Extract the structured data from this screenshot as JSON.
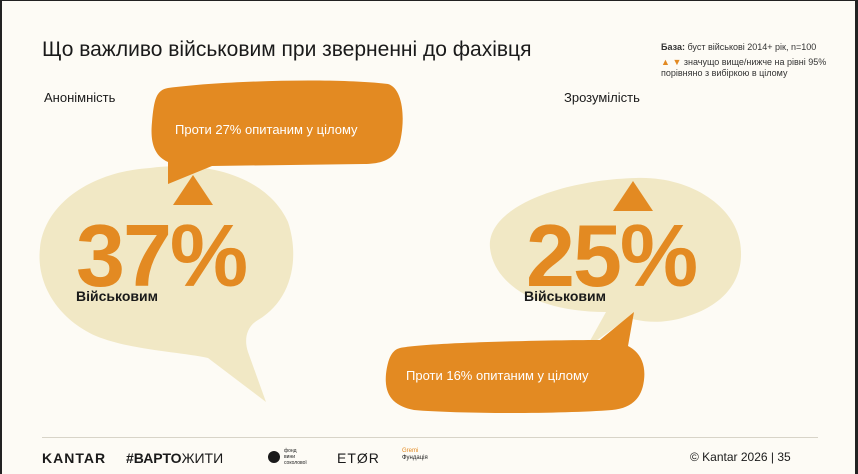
{
  "title": "Що важливо військовим при зверненні до фахівця",
  "notes": {
    "base_label": "База:",
    "base_text": "буст військові 2014+ рік, n=100",
    "legend_up": "▲",
    "legend_down": "▼",
    "legend_text": "значущо вище/нижче на рівні 95% порівняно з вибіркою в цілому"
  },
  "panels": [
    {
      "label": "Анонімність",
      "value": "37%",
      "sublabel": "Військовим",
      "comparison": "Проти 27% опитаним у цілому",
      "significance": "up"
    },
    {
      "label": "Зрозумілість",
      "value": "25%",
      "sublabel": "Військовим",
      "comparison": "Проти 16% опитаним у цілому",
      "significance": "up"
    }
  ],
  "colors": {
    "accent": "#e38a22",
    "bubble": "#f1e8c5",
    "text": "#1a1a1a"
  },
  "footer": {
    "kantar": "KANTAR",
    "varto_bold": "#ВАРТО",
    "varto_rest": "ЖИТИ",
    "fund_lines": [
      "фонд",
      "вини",
      "соколової"
    ],
    "etor": "ETØR",
    "gremi_top": "Gremi",
    "gremi_bottom": "Фундація",
    "copyright": "© Kantar 2026 | 35"
  }
}
